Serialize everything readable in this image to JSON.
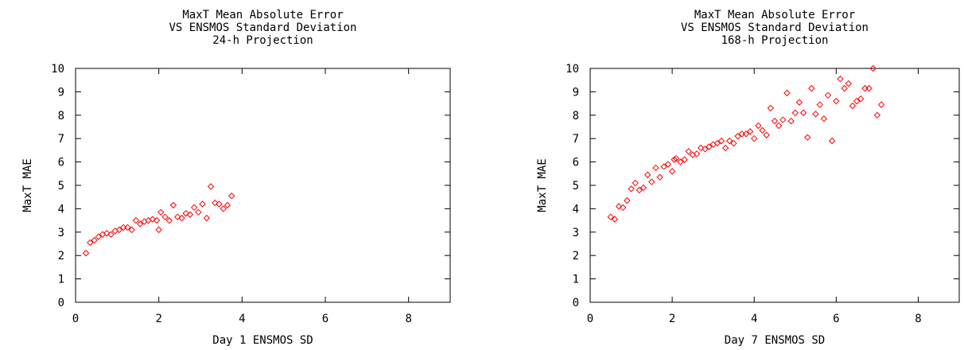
{
  "chart_data": [
    {
      "type": "scatter",
      "title": [
        "MaxT Mean Absolute Error",
        "VS ENSMOS Standard Deviation",
        "24-h Projection"
      ],
      "xlabel": "Day 1 ENSMOS SD",
      "ylabel": "MaxT MAE",
      "xlim": [
        0,
        9
      ],
      "ylim": [
        0,
        10
      ],
      "xticks": [
        0,
        2,
        4,
        6,
        8
      ],
      "yticks": [
        0,
        1,
        2,
        3,
        4,
        5,
        6,
        7,
        8,
        9,
        10
      ],
      "grid": false,
      "marker": "diamond",
      "color": "#ff0000",
      "points": [
        [
          0.25,
          2.1
        ],
        [
          0.35,
          2.55
        ],
        [
          0.45,
          2.65
        ],
        [
          0.55,
          2.8
        ],
        [
          0.65,
          2.9
        ],
        [
          0.75,
          2.95
        ],
        [
          0.85,
          2.9
        ],
        [
          0.95,
          3.05
        ],
        [
          1.05,
          3.1
        ],
        [
          1.15,
          3.2
        ],
        [
          1.25,
          3.2
        ],
        [
          1.35,
          3.1
        ],
        [
          1.45,
          3.5
        ],
        [
          1.55,
          3.35
        ],
        [
          1.65,
          3.45
        ],
        [
          1.75,
          3.5
        ],
        [
          1.85,
          3.55
        ],
        [
          1.95,
          3.5
        ],
        [
          2.0,
          3.1
        ],
        [
          2.05,
          3.85
        ],
        [
          2.15,
          3.65
        ],
        [
          2.25,
          3.5
        ],
        [
          2.35,
          4.15
        ],
        [
          2.45,
          3.65
        ],
        [
          2.55,
          3.6
        ],
        [
          2.65,
          3.8
        ],
        [
          2.75,
          3.75
        ],
        [
          2.85,
          4.05
        ],
        [
          2.95,
          3.85
        ],
        [
          3.05,
          4.2
        ],
        [
          3.15,
          3.6
        ],
        [
          3.25,
          4.95
        ],
        [
          3.35,
          4.25
        ],
        [
          3.45,
          4.2
        ],
        [
          3.55,
          4.0
        ],
        [
          3.65,
          4.15
        ],
        [
          3.75,
          4.55
        ]
      ]
    },
    {
      "type": "scatter",
      "title": [
        "MaxT Mean Absolute Error",
        "VS ENSMOS Standard Deviation",
        "168-h Projection"
      ],
      "xlabel": "Day 7 ENSMOS SD",
      "ylabel": "MaxT MAE",
      "xlim": [
        0,
        9
      ],
      "ylim": [
        0,
        10
      ],
      "xticks": [
        0,
        2,
        4,
        6,
        8
      ],
      "yticks": [
        0,
        1,
        2,
        3,
        4,
        5,
        6,
        7,
        8,
        9,
        10
      ],
      "grid": false,
      "marker": "diamond",
      "color": "#ff0000",
      "points": [
        [
          0.5,
          3.65
        ],
        [
          0.6,
          3.55
        ],
        [
          0.7,
          4.1
        ],
        [
          0.8,
          4.05
        ],
        [
          0.9,
          4.35
        ],
        [
          1.0,
          4.85
        ],
        [
          1.1,
          5.1
        ],
        [
          1.2,
          4.8
        ],
        [
          1.3,
          4.9
        ],
        [
          1.4,
          5.45
        ],
        [
          1.5,
          5.15
        ],
        [
          1.6,
          5.75
        ],
        [
          1.7,
          5.35
        ],
        [
          1.8,
          5.8
        ],
        [
          1.9,
          5.9
        ],
        [
          2.0,
          5.6
        ],
        [
          2.05,
          6.1
        ],
        [
          2.1,
          6.15
        ],
        [
          2.2,
          6.0
        ],
        [
          2.3,
          6.1
        ],
        [
          2.4,
          6.45
        ],
        [
          2.5,
          6.3
        ],
        [
          2.6,
          6.35
        ],
        [
          2.7,
          6.6
        ],
        [
          2.8,
          6.55
        ],
        [
          2.9,
          6.65
        ],
        [
          3.0,
          6.75
        ],
        [
          3.1,
          6.8
        ],
        [
          3.2,
          6.9
        ],
        [
          3.3,
          6.6
        ],
        [
          3.4,
          6.9
        ],
        [
          3.5,
          6.8
        ],
        [
          3.6,
          7.1
        ],
        [
          3.7,
          7.2
        ],
        [
          3.8,
          7.2
        ],
        [
          3.9,
          7.3
        ],
        [
          4.0,
          7.0
        ],
        [
          4.1,
          7.55
        ],
        [
          4.2,
          7.35
        ],
        [
          4.3,
          7.15
        ],
        [
          4.4,
          8.3
        ],
        [
          4.5,
          7.75
        ],
        [
          4.6,
          7.55
        ],
        [
          4.7,
          7.8
        ],
        [
          4.8,
          8.95
        ],
        [
          4.9,
          7.75
        ],
        [
          5.0,
          8.1
        ],
        [
          5.1,
          8.55
        ],
        [
          5.2,
          8.1
        ],
        [
          5.3,
          7.05
        ],
        [
          5.4,
          9.15
        ],
        [
          5.5,
          8.05
        ],
        [
          5.6,
          8.45
        ],
        [
          5.7,
          7.85
        ],
        [
          5.8,
          8.85
        ],
        [
          5.9,
          6.9
        ],
        [
          6.0,
          8.6
        ],
        [
          6.1,
          9.55
        ],
        [
          6.2,
          9.15
        ],
        [
          6.3,
          9.35
        ],
        [
          6.4,
          8.4
        ],
        [
          6.5,
          8.6
        ],
        [
          6.6,
          8.7
        ],
        [
          6.7,
          9.15
        ],
        [
          6.8,
          9.15
        ],
        [
          6.9,
          10.0
        ],
        [
          7.0,
          8.0
        ],
        [
          7.1,
          8.45
        ]
      ]
    }
  ]
}
